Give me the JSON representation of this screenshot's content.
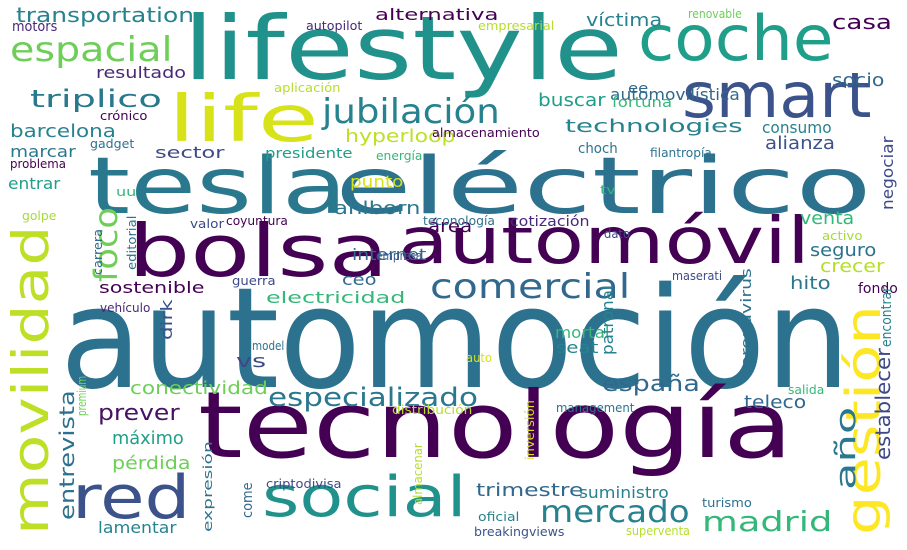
{
  "words": [
    {
      "text": "automoción",
      "color": "#2c728e"
    },
    {
      "text": "tecnología",
      "color": "#440154"
    },
    {
      "text": "lifestyle",
      "color": "#21918c"
    },
    {
      "text": "tesla",
      "color": "#2a788e"
    },
    {
      "text": "eléctrico",
      "color": "#2c728e"
    },
    {
      "text": "bolsa",
      "color": "#440154"
    },
    {
      "text": "automóvil",
      "color": "#440154"
    },
    {
      "text": "coche",
      "color": "#1f9e89"
    },
    {
      "text": "smart",
      "color": "#3b528b"
    },
    {
      "text": "life",
      "color": "#d8e219"
    },
    {
      "text": "movilidad",
      "color": "#bddf26"
    },
    {
      "text": "gestión",
      "color": "#fde725"
    },
    {
      "text": "red",
      "color": "#3b528b"
    },
    {
      "text": "social",
      "color": "#21918c"
    },
    {
      "text": "comercial",
      "color": "#31688e"
    },
    {
      "text": "especializado",
      "color": "#2a788e"
    },
    {
      "text": "espacial",
      "color": "#6ece58"
    },
    {
      "text": "jubilación",
      "color": "#26828e"
    },
    {
      "text": "foco",
      "color": "#6ece58"
    },
    {
      "text": "mercado",
      "color": "#26828e"
    },
    {
      "text": "madrid",
      "color": "#35b779"
    },
    {
      "text": "año",
      "color": "#2a788e"
    },
    {
      "text": "transportation",
      "color": "#26828e"
    },
    {
      "text": "motors",
      "color": "#482878"
    },
    {
      "text": "resultado",
      "color": "#482878"
    },
    {
      "text": "triplico",
      "color": "#2a788e"
    },
    {
      "text": "barcelona",
      "color": "#26828e"
    },
    {
      "text": "marcar",
      "color": "#2a788e"
    },
    {
      "text": "entrar",
      "color": "#1f9e89"
    },
    {
      "text": "sector",
      "color": "#3e4989"
    },
    {
      "text": "presidente",
      "color": "#1f9e89"
    },
    {
      "text": "hyperloop",
      "color": "#bddf26"
    },
    {
      "text": "technologies",
      "color": "#26828e"
    },
    {
      "text": "consumo",
      "color": "#26828e"
    },
    {
      "text": "alianza",
      "color": "#3b528b"
    },
    {
      "text": "alternativa",
      "color": "#440154"
    },
    {
      "text": "víctima",
      "color": "#26828e"
    },
    {
      "text": "casa",
      "color": "#440154"
    },
    {
      "text": "socio",
      "color": "#31688e"
    },
    {
      "text": "automovilística",
      "color": "#31688e"
    },
    {
      "text": "buscar",
      "color": "#1f9e89"
    },
    {
      "text": "fortuna",
      "color": "#35b779"
    },
    {
      "text": "ee",
      "color": "#31688e"
    },
    {
      "text": "internet",
      "color": "#31688e"
    },
    {
      "text": "punto",
      "color": "#d8e219"
    },
    {
      "text": "ahlborn",
      "color": "#2a788e"
    },
    {
      "text": "área",
      "color": "#440154"
    },
    {
      "text": "venta",
      "color": "#35b779"
    },
    {
      "text": "seguro",
      "color": "#2c728e"
    },
    {
      "text": "crecer",
      "color": "#b5de2b"
    },
    {
      "text": "hito",
      "color": "#2a788e"
    },
    {
      "text": "ceo",
      "color": "#31688e"
    },
    {
      "text": "sostenible",
      "color": "#440154"
    },
    {
      "text": "electricidad",
      "color": "#35b779"
    },
    {
      "text": "dirk",
      "color": "#3b528b"
    },
    {
      "text": "vs",
      "color": "#3e4989"
    },
    {
      "text": "conectividad",
      "color": "#6ece58"
    },
    {
      "text": "prever",
      "color": "#471164"
    },
    {
      "text": "españa",
      "color": "#31688e"
    },
    {
      "text": "teleco",
      "color": "#31688e"
    },
    {
      "text": "máximo",
      "color": "#1f9e89"
    },
    {
      "text": "pérdida",
      "color": "#6ece58"
    },
    {
      "text": "entrevista",
      "color": "#2c728e"
    },
    {
      "text": "trimestre",
      "color": "#31688e"
    },
    {
      "text": "suministro",
      "color": "#26828e"
    },
    {
      "text": "establecer",
      "color": "#3e4989"
    },
    {
      "text": "lamentar",
      "color": "#26828e"
    },
    {
      "text": "mortal",
      "color": "#35b779"
    },
    {
      "text": "seat",
      "color": "#26828e"
    },
    {
      "text": "patronal",
      "color": "#26828e"
    },
    {
      "text": "coronavirus",
      "color": "#2c728e"
    },
    {
      "text": "negociar",
      "color": "#3e4989"
    },
    {
      "text": "fondo",
      "color": "#440154"
    },
    {
      "text": "encontrar",
      "color": "#26828e"
    },
    {
      "text": "autopilot",
      "color": "#482878"
    },
    {
      "text": "empresarial",
      "color": "#b5de2b"
    },
    {
      "text": "renovable",
      "color": "#6ece58"
    },
    {
      "text": "aplicación",
      "color": "#b5de2b"
    },
    {
      "text": "crónico",
      "color": "#440154"
    },
    {
      "text": "gadget",
      "color": "#2c728e"
    },
    {
      "text": "almacenamiento",
      "color": "#440154"
    },
    {
      "text": "choch",
      "color": "#2c728e"
    },
    {
      "text": "filantropía",
      "color": "#2c728e"
    },
    {
      "text": "problema",
      "color": "#440154"
    },
    {
      "text": "energía",
      "color": "#35b779"
    },
    {
      "text": "uu",
      "color": "#35b779"
    },
    {
      "text": "tv",
      "color": "#35b779"
    },
    {
      "text": "golpe",
      "color": "#a5db36"
    },
    {
      "text": "valor",
      "color": "#3e4989"
    },
    {
      "text": "coyuntura",
      "color": "#440154"
    },
    {
      "text": "teconología",
      "color": "#2c728e"
    },
    {
      "text": "cotización",
      "color": "#482878"
    },
    {
      "text": "editorial",
      "color": "#2c728e"
    },
    {
      "text": "carrera",
      "color": "#31688e"
    },
    {
      "text": "dato",
      "color": "#3e4989"
    },
    {
      "text": "empresa",
      "color": "#3b528b"
    },
    {
      "text": "activo",
      "color": "#a5db36"
    },
    {
      "text": "vehículo",
      "color": "#482878"
    },
    {
      "text": "guerra",
      "color": "#3e4989"
    },
    {
      "text": "maserati",
      "color": "#3e4989"
    },
    {
      "text": "model",
      "color": "#2c728e"
    },
    {
      "text": "auto",
      "color": "#d8e219"
    },
    {
      "text": "premium",
      "color": "#6ece58"
    },
    {
      "text": "distribución",
      "color": "#b5de2b"
    },
    {
      "text": "management",
      "color": "#2c728e"
    },
    {
      "text": "salida",
      "color": "#35b779"
    },
    {
      "text": "inversión",
      "color": "#d8e219"
    },
    {
      "text": "expresión",
      "color": "#2c728e"
    },
    {
      "text": "almacenar",
      "color": "#b5de2b"
    },
    {
      "text": "come",
      "color": "#31688e"
    },
    {
      "text": "criptodivisa",
      "color": "#3e4989"
    },
    {
      "text": "oficial",
      "color": "#26828e"
    },
    {
      "text": "breakingviews",
      "color": "#3b528b"
    },
    {
      "text": "superventa",
      "color": "#b5de2b"
    },
    {
      "text": "turismo",
      "color": "#2c728e"
    }
  ]
}
